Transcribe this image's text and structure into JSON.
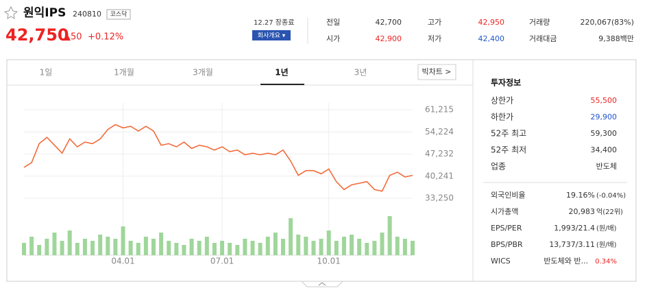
{
  "header": {
    "name": "원익IPS",
    "code": "240810",
    "market": "코스닥",
    "price": "42,750",
    "change": "▲50",
    "change_pct": "+0.12%",
    "status": "12.27 장종료",
    "company_button": "회사개요 ▾",
    "quote": [
      [
        "전일",
        "42,700",
        "고가",
        "42,950",
        "거래량",
        "220,067(83%)"
      ],
      [
        "시가",
        "42,900",
        "저가",
        "42,400",
        "거래대금",
        "9,388백만"
      ]
    ]
  },
  "tabs": [
    "1일",
    "1개월",
    "3개월",
    "1년",
    "3년"
  ],
  "big_chart": "빅차트 >",
  "panel": {
    "title": "투자정보",
    "rows": [
      [
        "상한가",
        "55,500"
      ],
      [
        "하한가",
        "29,900"
      ],
      [
        "52주 최고",
        "59,300"
      ],
      [
        "52주 최저",
        "34,400"
      ],
      [
        "업종",
        "반도체"
      ]
    ],
    "rows2": [
      [
        "외국인비율",
        "19.16%",
        "(-0.04%)"
      ],
      [
        "시가총액",
        "20,983",
        "억(22위)"
      ],
      [
        "EPS/PER",
        "1,993/21.4",
        "(원/배)"
      ],
      [
        "BPS/PBR",
        "13,737/3.11",
        "(원/배)"
      ],
      [
        "WICS",
        "반도체와 반...",
        "0.34%"
      ]
    ]
  },
  "chart_data": {
    "type": "line",
    "color": "#f26b3a",
    "grid": true,
    "categories": [
      null,
      null,
      null,
      null,
      null,
      null,
      null,
      null,
      null,
      null,
      null,
      null,
      null,
      "04.01",
      null,
      null,
      null,
      null,
      null,
      null,
      null,
      null,
      null,
      null,
      null,
      null,
      "07.01",
      null,
      null,
      null,
      null,
      null,
      null,
      null,
      null,
      null,
      null,
      null,
      null,
      null,
      "10.01",
      null,
      null,
      null,
      null,
      null,
      null,
      null,
      null,
      null,
      null,
      null
    ],
    "values": [
      43000,
      44500,
      50500,
      52500,
      50000,
      47500,
      52000,
      49500,
      51000,
      50500,
      52000,
      55000,
      56500,
      55500,
      56000,
      54500,
      56000,
      54500,
      50000,
      50500,
      49500,
      51000,
      49000,
      50000,
      49500,
      48500,
      49500,
      48000,
      48500,
      47000,
      47500,
      47000,
      47500,
      47000,
      48500,
      45000,
      40500,
      42000,
      42000,
      41000,
      42500,
      38500,
      36000,
      37500,
      38000,
      38500,
      36000,
      35500,
      40500,
      41500,
      40000,
      40500
    ],
    "ylim": [
      29790,
      63380
    ],
    "yticks": [
      {
        "value": 33250,
        "label": "33,250"
      },
      {
        "value": 40241,
        "label": "40,241"
      },
      {
        "value": 47232,
        "label": "47,232"
      },
      {
        "value": 54224,
        "label": "54,224"
      },
      {
        "value": 61215,
        "label": "61,215"
      }
    ],
    "volume": {
      "color": "#9fd69a",
      "ylim": [
        0,
        100
      ],
      "values": [
        30,
        45,
        25,
        40,
        55,
        35,
        60,
        30,
        40,
        35,
        50,
        45,
        40,
        70,
        35,
        30,
        45,
        40,
        55,
        35,
        30,
        25,
        40,
        35,
        45,
        30,
        35,
        30,
        25,
        40,
        35,
        30,
        45,
        55,
        40,
        90,
        50,
        45,
        35,
        40,
        60,
        35,
        45,
        50,
        40,
        30,
        35,
        55,
        95,
        45,
        40,
        35
      ]
    }
  }
}
